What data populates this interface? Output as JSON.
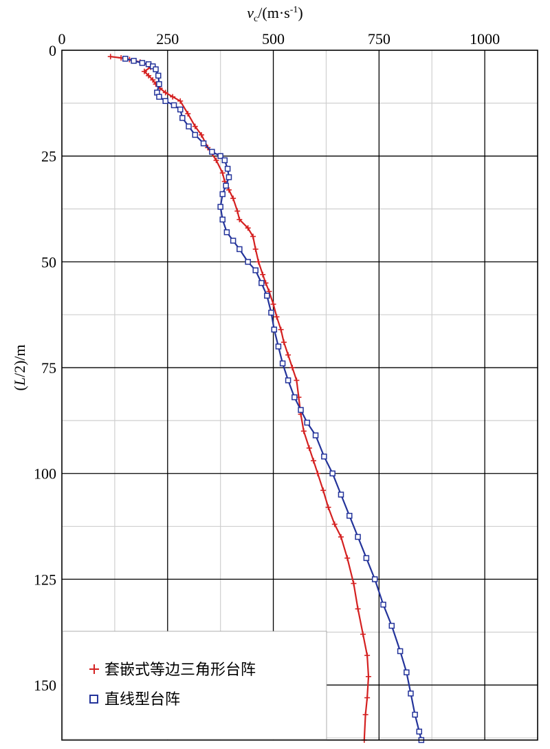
{
  "chart_data": {
    "type": "line",
    "title": "",
    "xlabel": "v_c/(m·s^-1)",
    "xlabel_parts": {
      "v": "v",
      "sub": "c",
      "mid": "/(m·s",
      "sup": "-1",
      "end": ")"
    },
    "ylabel": "(L/2)/m",
    "ylabel_parts": {
      "open": "(",
      "italic": "L",
      "rest": "/2)/m"
    },
    "x_axis_position": "top",
    "xlim": [
      0,
      1125
    ],
    "ylim": [
      0,
      163
    ],
    "y_inverted": true,
    "x_ticks": [
      0,
      250,
      500,
      750,
      1000
    ],
    "x_tick_labels": [
      "0",
      "250",
      "500",
      "750",
      "1000"
    ],
    "y_ticks": [
      0,
      25,
      50,
      75,
      100,
      125,
      150
    ],
    "y_tick_labels": [
      "0",
      "25",
      "50",
      "75",
      "100",
      "125",
      "150"
    ],
    "grid": true,
    "legend_position": "bottom-left",
    "series": [
      {
        "name": "套嵌式等边三角形台阵",
        "color": "#d42020",
        "marker": "plus",
        "points": [
          [
            115,
            1.5
          ],
          [
            140,
            1.8
          ],
          [
            160,
            2.2
          ],
          [
            185,
            2.8
          ],
          [
            200,
            3.3
          ],
          [
            210,
            4
          ],
          [
            195,
            5
          ],
          [
            205,
            6
          ],
          [
            215,
            7
          ],
          [
            222,
            8
          ],
          [
            232,
            9
          ],
          [
            245,
            10
          ],
          [
            262,
            11
          ],
          [
            280,
            12
          ],
          [
            298,
            15
          ],
          [
            315,
            18
          ],
          [
            330,
            20
          ],
          [
            345,
            23
          ],
          [
            365,
            26
          ],
          [
            380,
            29
          ],
          [
            385,
            31
          ],
          [
            395,
            33
          ],
          [
            405,
            35
          ],
          [
            415,
            38
          ],
          [
            420,
            40
          ],
          [
            440,
            42
          ],
          [
            452,
            44
          ],
          [
            458,
            47
          ],
          [
            465,
            50
          ],
          [
            475,
            53
          ],
          [
            482,
            55
          ],
          [
            490,
            57
          ],
          [
            500,
            60
          ],
          [
            508,
            63
          ],
          [
            518,
            66
          ],
          [
            525,
            69
          ],
          [
            535,
            72
          ],
          [
            545,
            75
          ],
          [
            555,
            78
          ],
          [
            560,
            82
          ],
          [
            565,
            86
          ],
          [
            572,
            90
          ],
          [
            585,
            94
          ],
          [
            595,
            97
          ],
          [
            605,
            100
          ],
          [
            618,
            104
          ],
          [
            630,
            108
          ],
          [
            645,
            112
          ],
          [
            660,
            115
          ],
          [
            675,
            120
          ],
          [
            690,
            126
          ],
          [
            700,
            132
          ],
          [
            712,
            138
          ],
          [
            722,
            143
          ],
          [
            725,
            148
          ],
          [
            722,
            153
          ],
          [
            718,
            157
          ],
          [
            715,
            163
          ]
        ]
      },
      {
        "name": "直线型台阵",
        "color": "#23339a",
        "marker": "square",
        "points": [
          [
            150,
            2
          ],
          [
            170,
            2.5
          ],
          [
            190,
            3
          ],
          [
            205,
            3.3
          ],
          [
            215,
            3.8
          ],
          [
            222,
            4.5
          ],
          [
            228,
            6
          ],
          [
            230,
            8
          ],
          [
            225,
            10
          ],
          [
            230,
            11
          ],
          [
            245,
            12
          ],
          [
            265,
            13
          ],
          [
            280,
            14
          ],
          [
            285,
            16
          ],
          [
            300,
            18
          ],
          [
            315,
            20
          ],
          [
            335,
            22
          ],
          [
            355,
            24
          ],
          [
            375,
            25
          ],
          [
            385,
            26
          ],
          [
            392,
            28
          ],
          [
            395,
            30
          ],
          [
            388,
            32
          ],
          [
            380,
            34
          ],
          [
            375,
            37
          ],
          [
            380,
            40
          ],
          [
            390,
            43
          ],
          [
            405,
            45
          ],
          [
            420,
            47
          ],
          [
            440,
            50
          ],
          [
            458,
            52
          ],
          [
            472,
            55
          ],
          [
            485,
            58
          ],
          [
            495,
            62
          ],
          [
            502,
            66
          ],
          [
            512,
            70
          ],
          [
            522,
            74
          ],
          [
            535,
            78
          ],
          [
            550,
            82
          ],
          [
            565,
            85
          ],
          [
            580,
            88
          ],
          [
            600,
            91
          ],
          [
            620,
            96
          ],
          [
            640,
            100
          ],
          [
            660,
            105
          ],
          [
            680,
            110
          ],
          [
            700,
            115
          ],
          [
            720,
            120
          ],
          [
            740,
            125
          ],
          [
            760,
            131
          ],
          [
            780,
            136
          ],
          [
            800,
            142
          ],
          [
            815,
            147
          ],
          [
            825,
            152
          ],
          [
            835,
            157
          ],
          [
            845,
            161
          ],
          [
            850,
            163
          ]
        ]
      }
    ]
  }
}
